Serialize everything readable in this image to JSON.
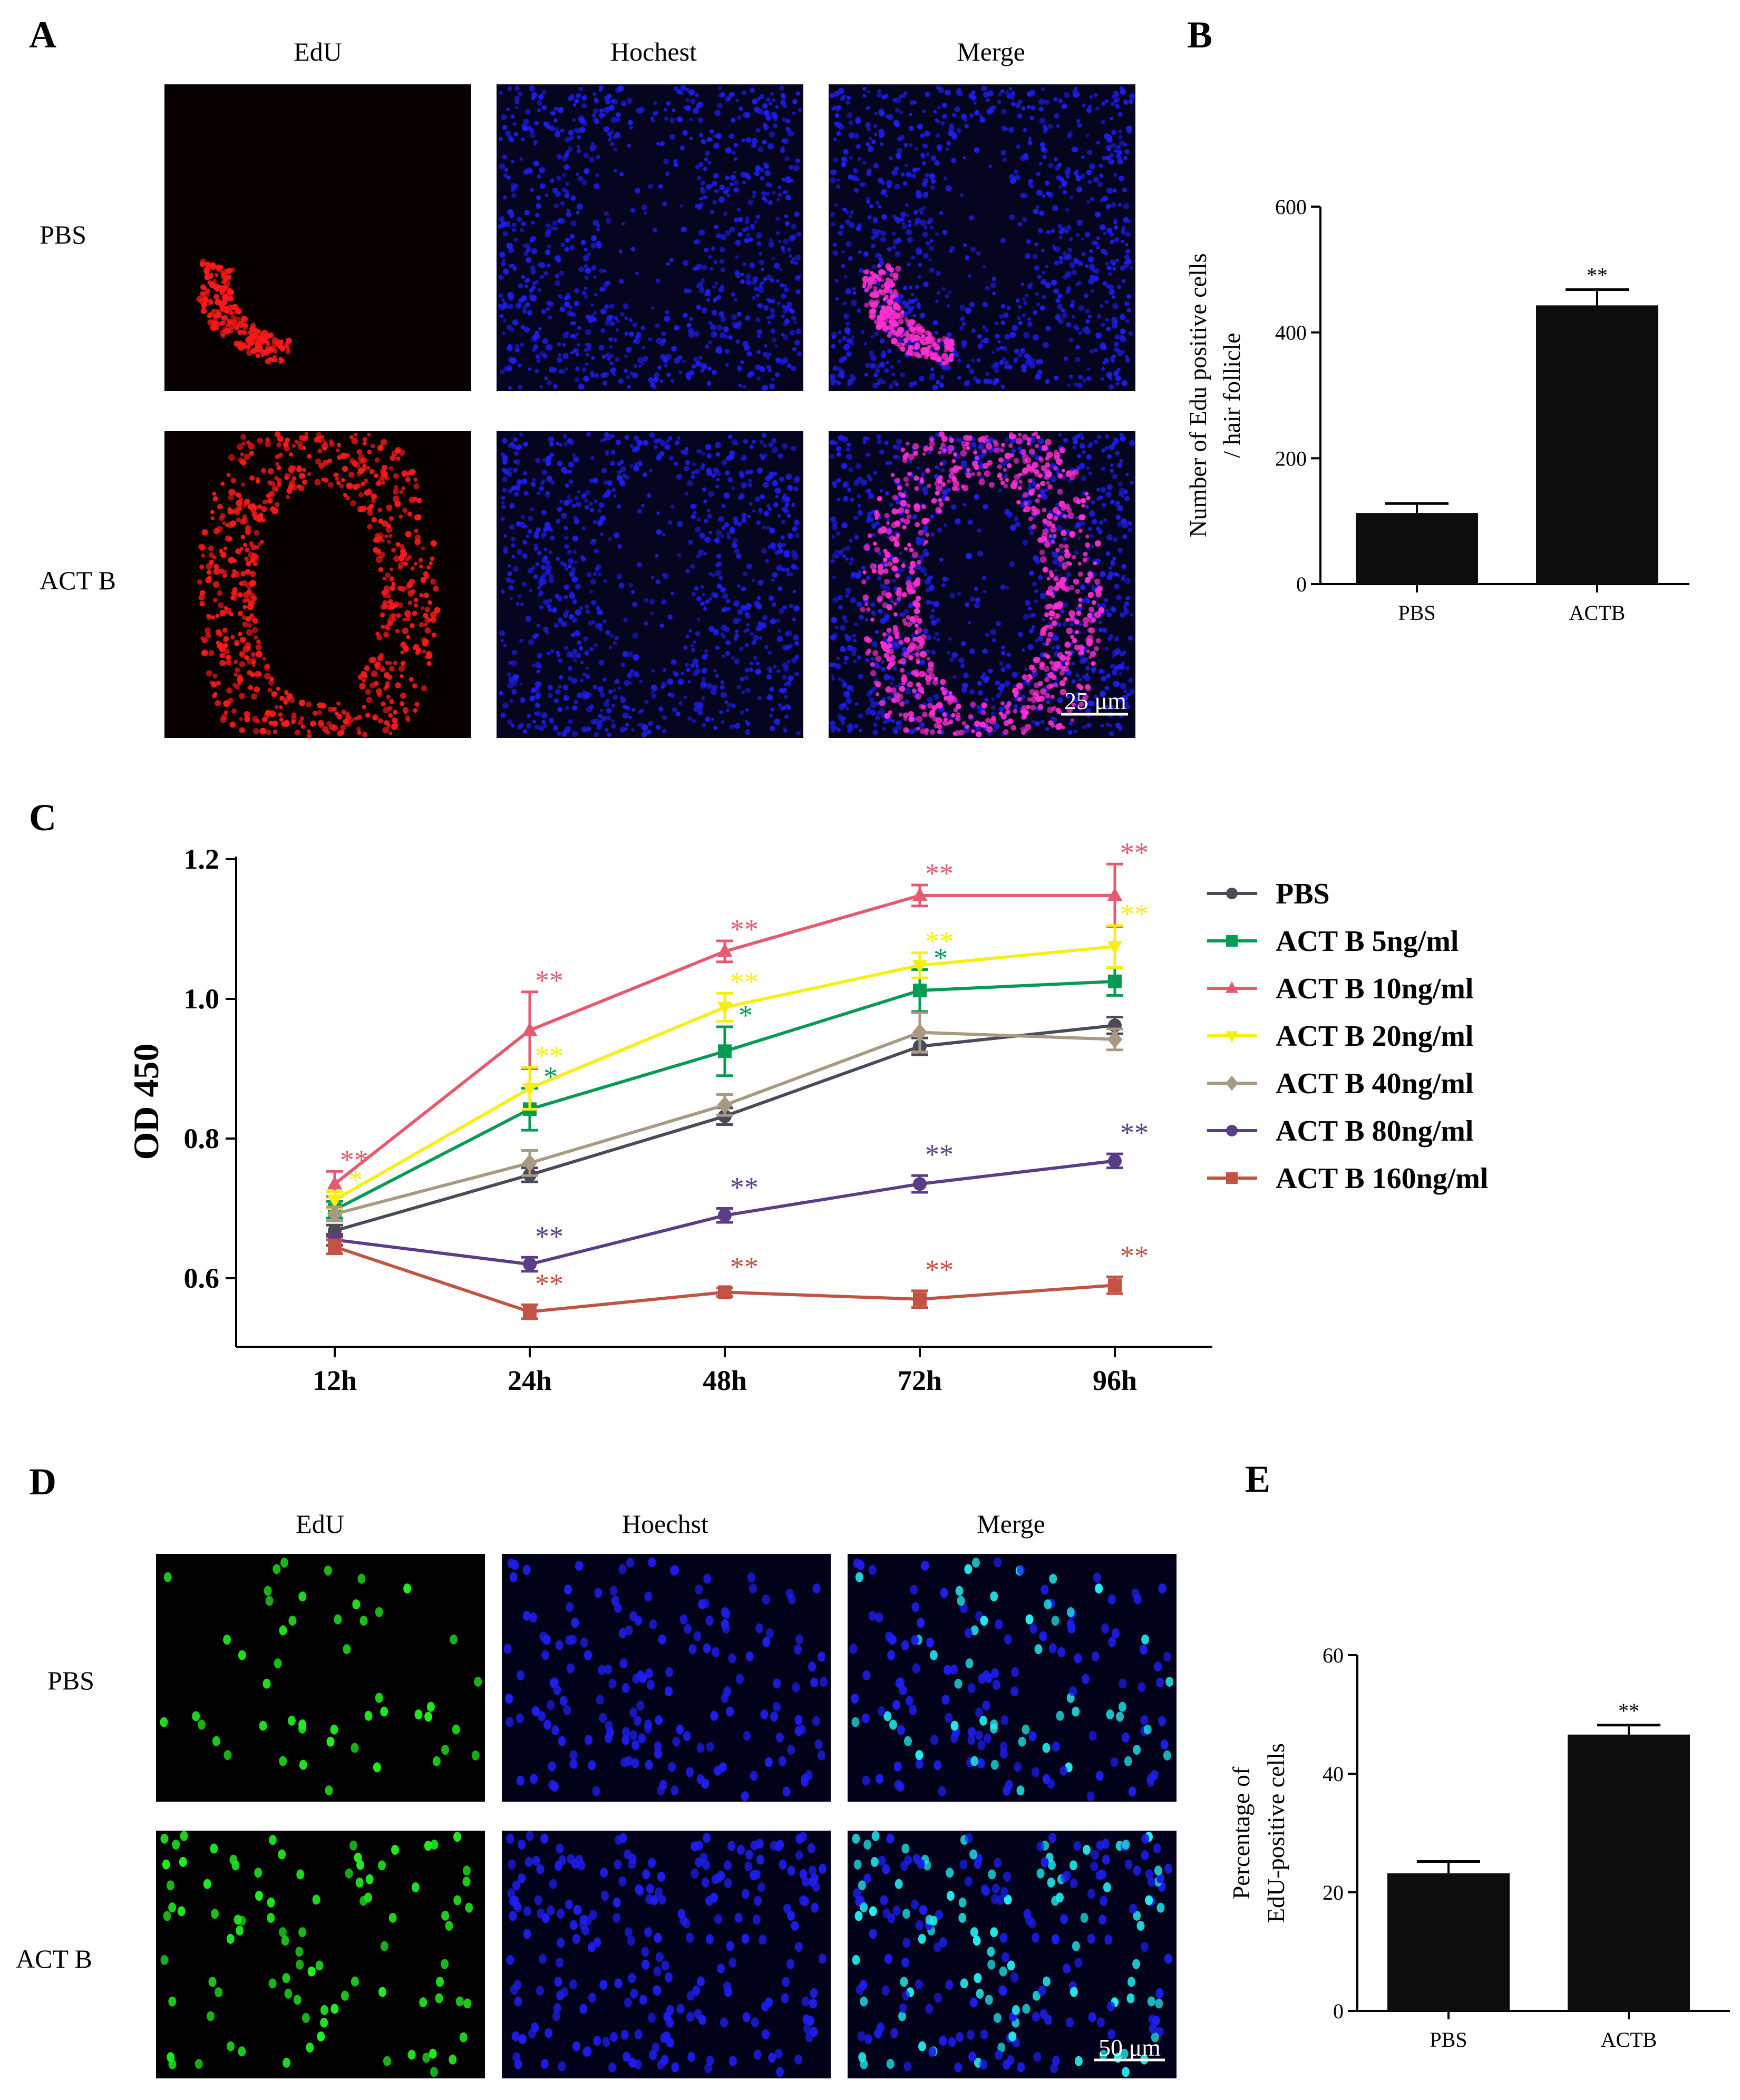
{
  "panels": {
    "A": {
      "letter": "A",
      "columns": [
        "EdU",
        "Hochest",
        "Merge"
      ],
      "rows": [
        "PBS",
        "ACT B"
      ],
      "scale_bar": "25 μm"
    },
    "B": {
      "letter": "B"
    },
    "C": {
      "letter": "C"
    },
    "D": {
      "letter": "D",
      "columns": [
        "EdU",
        "Hoechst",
        "Merge"
      ],
      "rows": [
        "PBS",
        "ACT B"
      ],
      "scale_bar": "50 μm"
    },
    "E": {
      "letter": "E"
    }
  },
  "colors": {
    "edu_red": "#ff1a1a",
    "hoechst_blue": "#1e1ef0",
    "merge_magenta": "#ff2fd2",
    "edu_green": "#22ee22",
    "merge_cyan": "#22f0f0",
    "bar": "#0d0d0d"
  },
  "chart_data": [
    {
      "panel": "B",
      "type": "bar",
      "categories": [
        "PBS",
        "ACTB"
      ],
      "values": [
        113,
        443
      ],
      "errors": [
        15,
        25
      ],
      "significance": [
        "",
        "**"
      ],
      "ylabel": "Number of Edu positive cells / hair follicle",
      "ylabel_lines": [
        "Number of Edu positive cells",
        "/ hair follicle"
      ],
      "yticks": [
        0,
        200,
        400,
        600
      ],
      "ylim": [
        0,
        600
      ]
    },
    {
      "panel": "C",
      "type": "line",
      "categories": [
        "12h",
        "24h",
        "48h",
        "72h",
        "96h"
      ],
      "ylabel": "OD 450",
      "yticks": [
        "0.6",
        "0.8",
        "1.0",
        "1.2"
      ],
      "ylim": [
        0.5,
        1.2
      ],
      "legend_position": "right",
      "series": [
        {
          "name": "PBS",
          "color": "#4a4a58",
          "marker": "circle",
          "values": [
            0.668,
            0.748,
            0.832,
            0.932,
            0.962
          ],
          "errors": [
            0.008,
            0.01,
            0.012,
            0.012,
            0.012
          ],
          "sig": [
            "",
            "",
            "",
            "",
            ""
          ]
        },
        {
          "name": "ACT B 5ng/ml",
          "color": "#079a55",
          "marker": "square",
          "values": [
            0.698,
            0.842,
            0.925,
            1.012,
            1.025
          ],
          "errors": [
            0.012,
            0.03,
            0.035,
            0.03,
            0.02
          ],
          "sig": [
            "",
            "*",
            "*",
            "*",
            ""
          ]
        },
        {
          "name": "ACT B 10ng/ml",
          "color": "#e55a6f",
          "marker": "triangle",
          "values": [
            0.735,
            0.955,
            1.068,
            1.148,
            1.148
          ],
          "errors": [
            0.018,
            0.055,
            0.015,
            0.015,
            0.045
          ],
          "sig": [
            "**",
            "**",
            "**",
            "**",
            "**"
          ]
        },
        {
          "name": "ACT B 20ng/ml",
          "color": "#f7ef14",
          "marker": "triangle-down",
          "values": [
            0.712,
            0.872,
            0.988,
            1.048,
            1.075
          ],
          "errors": [
            0.012,
            0.03,
            0.02,
            0.018,
            0.03
          ],
          "sig": [
            "*",
            "**",
            "**",
            "**",
            "**"
          ]
        },
        {
          "name": "ACT B 40ng/ml",
          "color": "#a89a82",
          "marker": "diamond",
          "values": [
            0.692,
            0.765,
            0.848,
            0.952,
            0.942
          ],
          "errors": [
            0.01,
            0.018,
            0.015,
            0.028,
            0.015
          ],
          "sig": [
            "",
            "",
            "",
            "",
            ""
          ]
        },
        {
          "name": "ACT B 80ng/ml",
          "color": "#5a3d86",
          "marker": "circle",
          "values": [
            0.655,
            0.62,
            0.69,
            0.735,
            0.768
          ],
          "errors": [
            0.008,
            0.01,
            0.01,
            0.012,
            0.01
          ],
          "sig": [
            "",
            "**",
            "**",
            "**",
            "**"
          ]
        },
        {
          "name": "ACT B 160ng/ml",
          "color": "#c25242",
          "marker": "square",
          "values": [
            0.645,
            0.552,
            0.58,
            0.57,
            0.59
          ],
          "errors": [
            0.01,
            0.01,
            0.006,
            0.012,
            0.012
          ],
          "sig": [
            "",
            "**",
            "**",
            "**",
            "**"
          ]
        }
      ]
    },
    {
      "panel": "E",
      "type": "bar",
      "categories": [
        "PBS",
        "ACTB"
      ],
      "values": [
        23.2,
        46.6
      ],
      "errors": [
        2.0,
        1.6
      ],
      "significance": [
        "",
        "**"
      ],
      "ylabel": "Percentage of EdU-positive cells",
      "ylabel_lines": [
        "Percentage of",
        "EdU-positive cells"
      ],
      "yticks": [
        0,
        20,
        40,
        60
      ],
      "ylim": [
        0,
        60
      ]
    }
  ]
}
